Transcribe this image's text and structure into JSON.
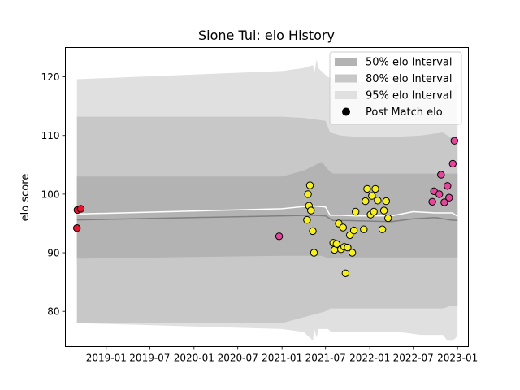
{
  "chart_data": {
    "type": "scatter",
    "title": "Sione Tui: elo History",
    "xlabel": "",
    "ylabel": "elo score",
    "xlim": [
      "2018-07-15",
      "2023-02-15"
    ],
    "ylim": [
      74,
      125
    ],
    "x_tick_labels": [
      "2019-01",
      "2019-07",
      "2020-01",
      "2020-07",
      "2021-01",
      "2021-07",
      "2022-01",
      "2022-07",
      "2023-01"
    ],
    "y_tick_labels": [
      "80",
      "90",
      "100",
      "110",
      "120"
    ],
    "grid": false,
    "legend_placement": "top-right",
    "legend": [
      {
        "label": "50% elo Interval",
        "kind": "patch",
        "color": "#b3b3b3"
      },
      {
        "label": "80% elo Interval",
        "kind": "patch",
        "color": "#c8c8c8"
      },
      {
        "label": "95% elo Interval",
        "kind": "patch",
        "color": "#e0e0e0"
      },
      {
        "label": "Post Match elo",
        "kind": "marker",
        "color": "#000000"
      }
    ],
    "colors": {
      "red": "#e8132e",
      "pink": "#e4479a",
      "yellow": "#f5f01e",
      "median_line": "#808080",
      "mean_line": "#ffffff"
    },
    "bands": [
      {
        "name": "95% elo Interval",
        "color": "#e0e0e0",
        "x": [
          "2018-09-01",
          "2021-01-01",
          "2021-04-01",
          "2021-05-10",
          "2021-05-15",
          "2021-05-25",
          "2021-06-01",
          "2021-07-10",
          "2021-07-25",
          "2021-09-01",
          "2021-11-01",
          "2022-01-01",
          "2022-03-01",
          "2022-05-01",
          "2022-08-01",
          "2022-11-01",
          "2022-11-20",
          "2022-12-10",
          "2022-12-25",
          "2023-01-01"
        ],
        "upper": [
          119.6,
          121,
          121.5,
          122,
          120.5,
          123,
          121.5,
          120,
          119.8,
          119.5,
          119.3,
          119,
          118.8,
          119,
          119.2,
          119.5,
          119,
          117.5,
          118.5,
          119
        ],
        "lower": [
          78,
          77,
          76.5,
          75,
          77,
          75.5,
          77,
          77,
          76.5,
          76.5,
          76.5,
          76.5,
          76.5,
          76.5,
          76,
          76,
          75,
          75,
          75.5,
          76
        ]
      },
      {
        "name": "80% elo Interval",
        "color": "#c8c8c8",
        "x": [
          "2018-09-01",
          "2021-01-01",
          "2021-04-01",
          "2021-07-01",
          "2021-07-20",
          "2021-09-01",
          "2021-11-01",
          "2022-01-01",
          "2022-03-01",
          "2022-05-01",
          "2022-08-01",
          "2022-11-01",
          "2022-12-10",
          "2023-01-01"
        ],
        "upper": [
          113.2,
          113.2,
          113,
          112.5,
          110.5,
          110,
          109.8,
          109.8,
          109.8,
          109.8,
          110,
          110.5,
          109.5,
          109.5
        ],
        "lower": [
          78,
          78,
          79,
          80,
          80.5,
          80.5,
          80.5,
          80.5,
          80.5,
          80.5,
          80.5,
          80.5,
          81,
          81
        ]
      },
      {
        "name": "50% elo Interval",
        "color": "#b3b3b3",
        "x": [
          "2018-09-01",
          "2021-01-01",
          "2021-04-01",
          "2021-06-15",
          "2021-07-15",
          "2021-08-01",
          "2021-09-01",
          "2021-11-01",
          "2022-01-01",
          "2022-03-01",
          "2022-05-01",
          "2022-08-01",
          "2022-11-01",
          "2022-12-10",
          "2023-01-01"
        ],
        "upper": [
          103,
          103,
          104,
          105.5,
          104,
          103.5,
          103.5,
          103.5,
          103.5,
          103.5,
          103.5,
          103.5,
          103.5,
          103.5,
          103.5
        ],
        "lower": [
          89,
          89.5,
          89.5,
          89.5,
          89,
          89.2,
          89.2,
          89.2,
          89.2,
          89.2,
          89.2,
          89.2,
          89.2,
          89.2,
          89.2
        ]
      }
    ],
    "lines": [
      {
        "name": "median",
        "color": "#808080",
        "x": [
          "2018-09-01",
          "2021-01-01",
          "2021-05-01",
          "2021-07-01",
          "2021-08-01",
          "2021-10-01",
          "2022-01-01",
          "2022-04-01",
          "2022-07-01",
          "2022-10-01",
          "2022-12-01",
          "2023-01-01"
        ],
        "y": [
          95.6,
          96.3,
          96.4,
          96.3,
          95.5,
          95.5,
          95.4,
          95.3,
          95.8,
          96,
          95.6,
          95.5
        ]
      },
      {
        "name": "mean",
        "color": "#ffffff",
        "x": [
          "2018-09-01",
          "2021-01-01",
          "2021-05-01",
          "2021-07-01",
          "2021-07-20",
          "2021-09-01",
          "2021-11-01",
          "2022-01-01",
          "2022-04-01",
          "2022-07-01",
          "2022-10-01",
          "2022-12-10",
          "2023-01-01"
        ],
        "y": [
          96.6,
          97.5,
          98,
          97.8,
          96.4,
          96.4,
          96.3,
          96.3,
          96.3,
          97,
          96.8,
          96.8,
          96.2
        ]
      }
    ],
    "points": [
      {
        "x": "2018-09-01",
        "y": 94.2,
        "color": "red"
      },
      {
        "x": "2018-09-03",
        "y": 97.3,
        "color": "red"
      },
      {
        "x": "2018-09-17",
        "y": 97.5,
        "color": "red"
      },
      {
        "x": "2020-12-20",
        "y": 92.8,
        "color": "pink"
      },
      {
        "x": "2021-04-15",
        "y": 95.6,
        "color": "yellow"
      },
      {
        "x": "2021-04-19",
        "y": 100.0,
        "color": "yellow"
      },
      {
        "x": "2021-04-23",
        "y": 98.0,
        "color": "yellow"
      },
      {
        "x": "2021-04-27",
        "y": 101.5,
        "color": "yellow"
      },
      {
        "x": "2021-05-01",
        "y": 97.2,
        "color": "yellow"
      },
      {
        "x": "2021-05-09",
        "y": 93.7,
        "color": "yellow"
      },
      {
        "x": "2021-05-14",
        "y": 90.0,
        "color": "yellow"
      },
      {
        "x": "2021-08-02",
        "y": 91.7,
        "color": "yellow"
      },
      {
        "x": "2021-08-07",
        "y": 90.5,
        "color": "yellow"
      },
      {
        "x": "2021-08-16",
        "y": 91.5,
        "color": "yellow"
      },
      {
        "x": "2021-08-25",
        "y": 95.0,
        "color": "yellow"
      },
      {
        "x": "2021-09-03",
        "y": 90.6,
        "color": "yellow"
      },
      {
        "x": "2021-09-12",
        "y": 94.3,
        "color": "yellow"
      },
      {
        "x": "2021-09-17",
        "y": 91.0,
        "color": "yellow"
      },
      {
        "x": "2021-09-22",
        "y": 86.5,
        "color": "yellow"
      },
      {
        "x": "2021-10-01",
        "y": 90.9,
        "color": "yellow"
      },
      {
        "x": "2021-10-10",
        "y": 93.0,
        "color": "yellow"
      },
      {
        "x": "2021-10-20",
        "y": 90.0,
        "color": "yellow"
      },
      {
        "x": "2021-10-27",
        "y": 93.8,
        "color": "yellow"
      },
      {
        "x": "2021-11-03",
        "y": 97.0,
        "color": "yellow"
      },
      {
        "x": "2021-12-07",
        "y": 94.0,
        "color": "yellow"
      },
      {
        "x": "2021-12-14",
        "y": 98.8,
        "color": "yellow"
      },
      {
        "x": "2021-12-21",
        "y": 100.9,
        "color": "yellow"
      },
      {
        "x": "2022-01-04",
        "y": 96.5,
        "color": "yellow"
      },
      {
        "x": "2022-01-10",
        "y": 99.7,
        "color": "yellow"
      },
      {
        "x": "2022-01-18",
        "y": 97.0,
        "color": "yellow"
      },
      {
        "x": "2022-01-24",
        "y": 100.9,
        "color": "yellow"
      },
      {
        "x": "2022-02-03",
        "y": 98.9,
        "color": "yellow"
      },
      {
        "x": "2022-02-22",
        "y": 94.0,
        "color": "yellow"
      },
      {
        "x": "2022-03-01",
        "y": 97.2,
        "color": "yellow"
      },
      {
        "x": "2022-03-10",
        "y": 98.8,
        "color": "yellow"
      },
      {
        "x": "2022-03-18",
        "y": 95.9,
        "color": "yellow"
      },
      {
        "x": "2022-09-18",
        "y": 98.7,
        "color": "pink"
      },
      {
        "x": "2022-09-25",
        "y": 100.5,
        "color": "pink"
      },
      {
        "x": "2022-10-17",
        "y": 100.0,
        "color": "pink"
      },
      {
        "x": "2022-10-24",
        "y": 103.3,
        "color": "pink"
      },
      {
        "x": "2022-11-07",
        "y": 98.6,
        "color": "pink"
      },
      {
        "x": "2022-11-20",
        "y": 101.4,
        "color": "pink"
      },
      {
        "x": "2022-11-27",
        "y": 99.4,
        "color": "pink"
      },
      {
        "x": "2022-12-12",
        "y": 105.2,
        "color": "pink"
      },
      {
        "x": "2022-12-19",
        "y": 109.1,
        "color": "pink"
      }
    ]
  }
}
